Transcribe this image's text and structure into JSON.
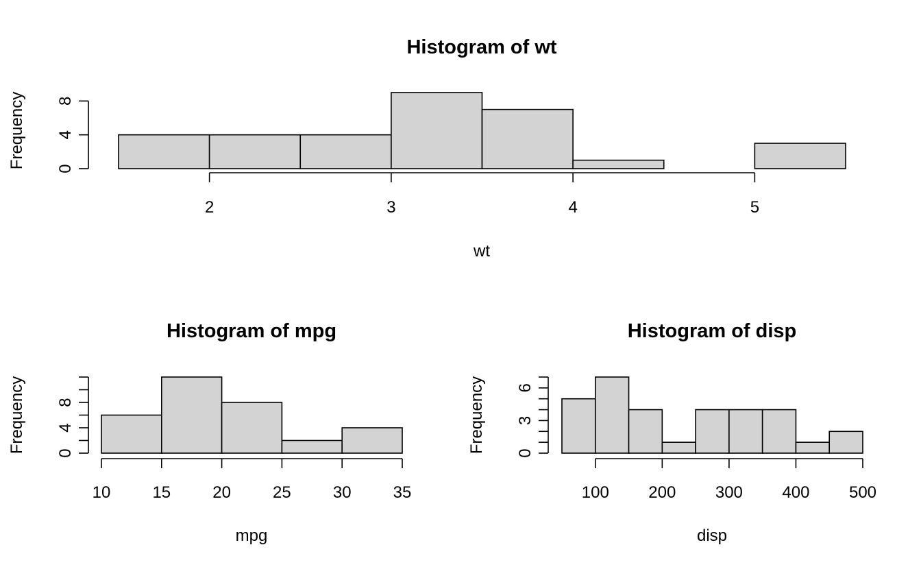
{
  "chart_data": [
    {
      "id": "wt",
      "type": "bar",
      "title": "Histogram of wt",
      "xlabel": "wt",
      "ylabel": "Frequency",
      "breaks": [
        1.5,
        2.0,
        2.5,
        3.0,
        3.5,
        4.0,
        4.5,
        5.0,
        5.5
      ],
      "values": [
        4,
        4,
        4,
        9,
        7,
        1,
        0,
        3
      ],
      "xticks": [
        2,
        3,
        4,
        5
      ],
      "yticks": [
        0,
        4,
        8
      ],
      "xlim": [
        1.5,
        5.5
      ],
      "ylim": [
        0,
        9
      ],
      "bar_color": "#d3d3d3"
    },
    {
      "id": "mpg",
      "type": "bar",
      "title": "Histogram of mpg",
      "xlabel": "mpg",
      "ylabel": "Frequency",
      "breaks": [
        10,
        15,
        20,
        25,
        30,
        35
      ],
      "values": [
        6,
        12,
        8,
        2,
        4
      ],
      "xticks": [
        10,
        15,
        20,
        25,
        30,
        35
      ],
      "yticks": [
        0,
        4,
        8
      ],
      "yminor": [
        0,
        2,
        4,
        6,
        8,
        10,
        12
      ],
      "xlim": [
        10,
        35
      ],
      "ylim": [
        0,
        12
      ],
      "bar_color": "#d3d3d3"
    },
    {
      "id": "disp",
      "type": "bar",
      "title": "Histogram of disp",
      "xlabel": "disp",
      "ylabel": "Frequency",
      "breaks": [
        50,
        100,
        150,
        200,
        250,
        300,
        350,
        400,
        450,
        500
      ],
      "values": [
        5,
        7,
        4,
        1,
        4,
        4,
        4,
        1,
        2
      ],
      "xticks": [
        100,
        200,
        300,
        400,
        500
      ],
      "yticks": [
        0,
        3,
        6
      ],
      "yminor": [
        0,
        1,
        2,
        3,
        4,
        5,
        6,
        7
      ],
      "xlim": [
        50,
        500
      ],
      "ylim": [
        0,
        7
      ],
      "bar_color": "#d3d3d3"
    }
  ]
}
